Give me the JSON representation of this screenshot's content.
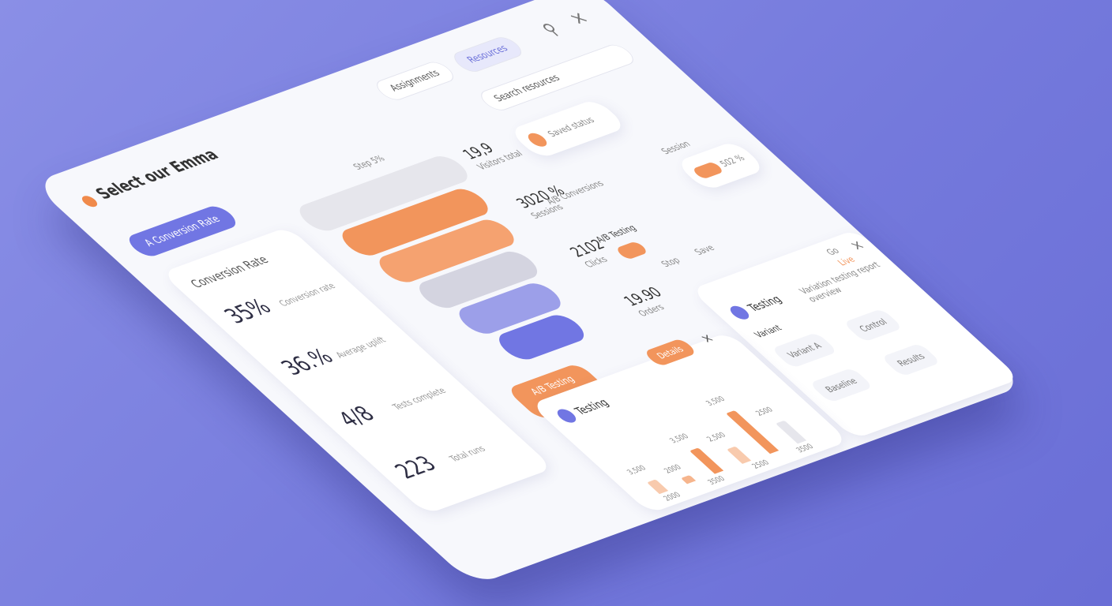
{
  "header": {
    "title": "Select our Emma",
    "tabs": [
      "Assignments",
      "Resources"
    ]
  },
  "search": {
    "placeholder": "Search resources"
  },
  "sidebar": {
    "button": "A Conversion Rate",
    "label": "Conversion Rate",
    "stats": [
      {
        "value": "35%",
        "caption": "Conversion rate"
      },
      {
        "value": "36.%",
        "caption": "Average uplift"
      },
      {
        "value": "4/8",
        "caption": "Tests complete"
      },
      {
        "value": "223",
        "caption": "Total runs"
      }
    ]
  },
  "funnel": {
    "top_label": "Step 5%",
    "labels": [
      "19,9",
      "3020 %",
      "2102",
      "19.90"
    ],
    "captions": [
      "Visitors total",
      "Sessions",
      "Clicks",
      "Orders"
    ]
  },
  "widgets": {
    "status": "Saved status",
    "ab_caption": "A/B Conversions",
    "ab_title": "A/B Testing",
    "small_label": "Session",
    "small_value": "502 %",
    "mini_a": "Stop",
    "mini_b": "Save"
  },
  "testing_panel": {
    "title": "Testing",
    "description": "Variation testing report overview",
    "sub": "Variant",
    "chips": [
      "Variant A",
      "Control",
      "Baseline",
      "Results"
    ],
    "tag_a": "Go",
    "tag_b": "Live"
  },
  "chart_card": {
    "tab": "A/B Testing",
    "title": "Testing",
    "button": "Details",
    "labels": [
      "3,500",
      "2000",
      "3,500",
      "2,500",
      "3,500",
      "2500"
    ],
    "axis": [
      "2000",
      "3500",
      "2500",
      "3500"
    ]
  }
}
